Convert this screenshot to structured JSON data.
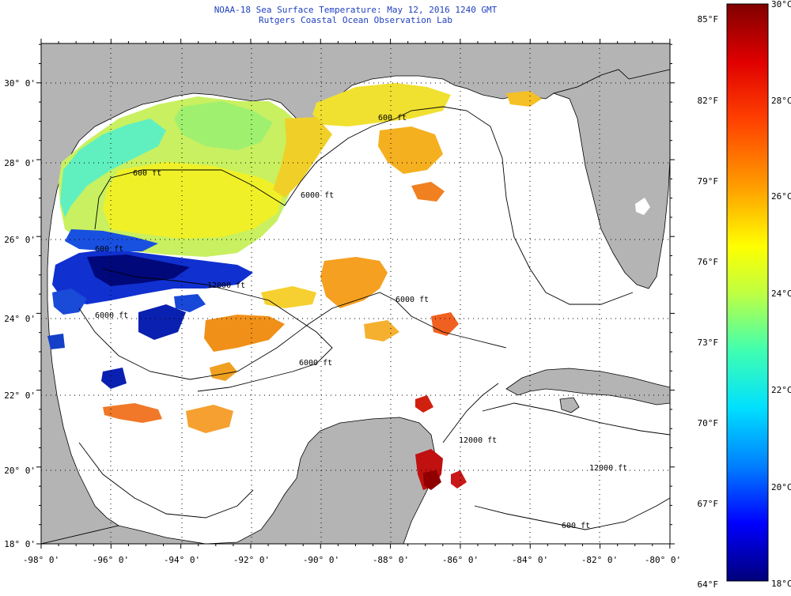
{
  "title": {
    "line1": "NOAA-18 Sea Surface Temperature:  May 12, 2016 1240 GMT",
    "line2": "Rutgers Coastal Ocean Observation Lab"
  },
  "map": {
    "lat_labels": [
      "30° 0'",
      "28° 0'",
      "26° 0'",
      "24° 0'",
      "22° 0'",
      "20° 0'",
      "18° 0'"
    ],
    "lon_labels": [
      "-98° 0'",
      "-96° 0'",
      "-94° 0'",
      "-92° 0'",
      "-90° 0'",
      "-88° 0'",
      "-86° 0'",
      "-84° 0'",
      "-82° 0'",
      "-80° 0'"
    ],
    "contour_labels": [
      "600 ft",
      "600 ft",
      "6000 ft",
      "12000 ft",
      "6000 ft",
      "12000 ft",
      "12000 ft",
      "600 ft",
      "600 ft",
      "6000 ft",
      "6000 ft"
    ],
    "lat_range": [
      18,
      31
    ],
    "lon_range": [
      -98,
      -80
    ],
    "colors": {
      "land": "#b4b4b4",
      "ocean_nodata": "#ffffff",
      "grid": "#000000",
      "contour": "#000000"
    }
  },
  "colorbar": {
    "fahrenheit": [
      "85°F",
      "82°F",
      "79°F",
      "76°F",
      "73°F",
      "70°F",
      "67°F",
      "64°F"
    ],
    "celsius": [
      "30°C",
      "28°C",
      "26°C",
      "24°C",
      "22°C",
      "20°C",
      "18°C"
    ],
    "range_c": [
      18,
      30
    ],
    "stops": [
      "#00007a",
      "#0000ff",
      "#0080ff",
      "#00e0ff",
      "#40ffb0",
      "#c0ff40",
      "#ffff00",
      "#ffa000",
      "#ff4000",
      "#e00000",
      "#800000"
    ]
  }
}
